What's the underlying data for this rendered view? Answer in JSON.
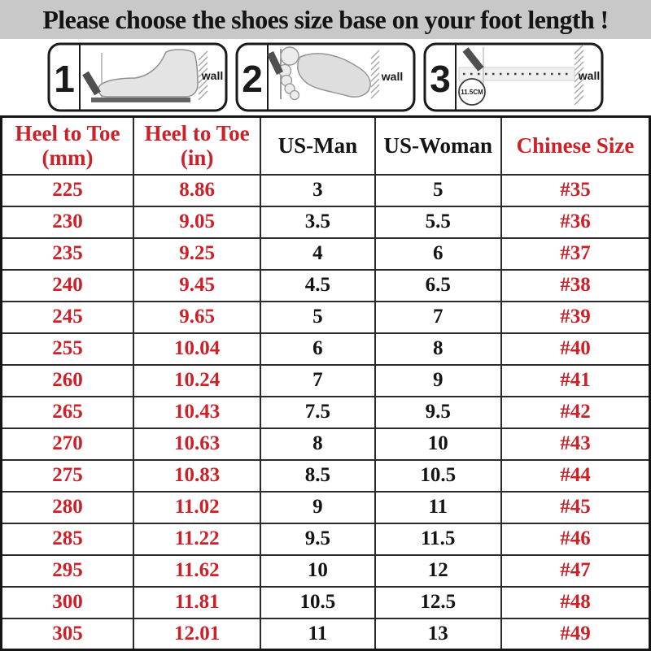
{
  "title": "Please choose the shoes size base on your foot length !",
  "instructions": {
    "panels": [
      {
        "number": "1",
        "wall_label": "wall"
      },
      {
        "number": "2",
        "wall_label": "wall"
      },
      {
        "number": "3",
        "wall_label": "wall",
        "measure_label": "11.5CM"
      }
    ]
  },
  "size_table": {
    "columns": [
      {
        "line1": "Heel to Toe",
        "line2": "(mm)",
        "color": "red"
      },
      {
        "line1": "Heel to Toe",
        "line2": "(in)",
        "color": "red"
      },
      {
        "line1": "US-Man",
        "line2": "",
        "color": "black"
      },
      {
        "line1": "US-Woman",
        "line2": "",
        "color": "black"
      },
      {
        "line1": "Chinese Size",
        "line2": "",
        "color": "red"
      }
    ],
    "rows": [
      [
        "225",
        "8.86",
        "3",
        "5",
        "#35"
      ],
      [
        "230",
        "9.05",
        "3.5",
        "5.5",
        "#36"
      ],
      [
        "235",
        "9.25",
        "4",
        "6",
        "#37"
      ],
      [
        "240",
        "9.45",
        "4.5",
        "6.5",
        "#38"
      ],
      [
        "245",
        "9.65",
        "5",
        "7",
        "#39"
      ],
      [
        "255",
        "10.04",
        "6",
        "8",
        "#40"
      ],
      [
        "260",
        "10.24",
        "7",
        "9",
        "#41"
      ],
      [
        "265",
        "10.43",
        "7.5",
        "9.5",
        "#42"
      ],
      [
        "270",
        "10.63",
        "8",
        "10",
        "#43"
      ],
      [
        "275",
        "10.83",
        "8.5",
        "10.5",
        "#44"
      ],
      [
        "280",
        "11.02",
        "9",
        "11",
        "#45"
      ],
      [
        "285",
        "11.22",
        "9.5",
        "11.5",
        "#46"
      ],
      [
        "295",
        "11.62",
        "10",
        "12",
        "#47"
      ],
      [
        "300",
        "11.81",
        "10.5",
        "12.5",
        "#48"
      ],
      [
        "305",
        "12.01",
        "11",
        "13",
        "#49"
      ]
    ]
  },
  "colors": {
    "accent_red": "#cc2128",
    "text_black": "#141414",
    "title_bg": "#c8c8c8",
    "grid_line": "#2b2b2b"
  }
}
